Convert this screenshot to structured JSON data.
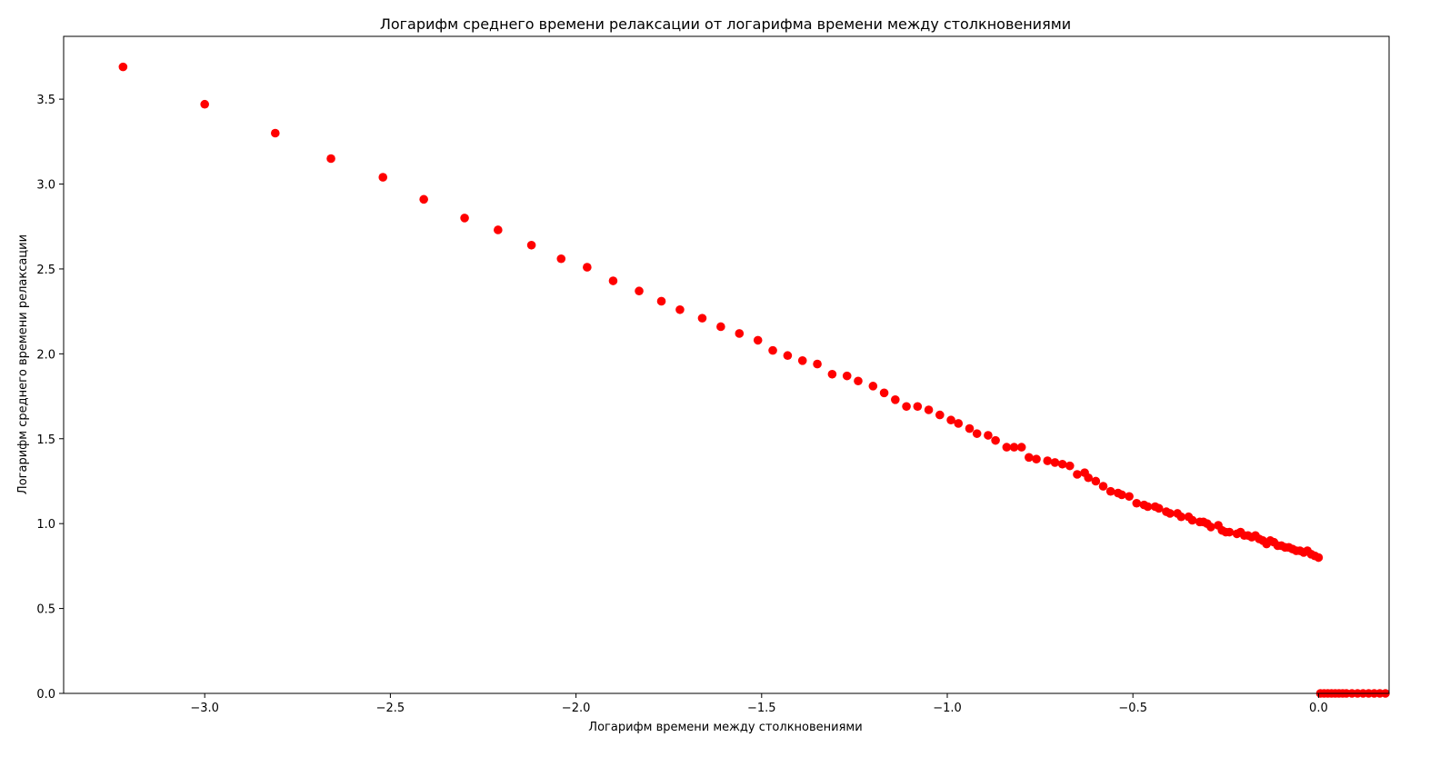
{
  "chart_data": {
    "type": "scatter",
    "title": "Логарифм среднего времени релаксации от логарифма времени между столкновениями",
    "xlabel": "Логарифм времени между столкновениями",
    "ylabel": "Логарифм среднего времени релаксации",
    "xlim": [
      -3.38,
      0.19
    ],
    "ylim": [
      0.0,
      3.87
    ],
    "x_ticks": [
      -3.0,
      -2.5,
      -2.0,
      -1.5,
      -1.0,
      -0.5,
      0.0
    ],
    "y_ticks": [
      0.0,
      0.5,
      1.0,
      1.5,
      2.0,
      2.5,
      3.0,
      3.5
    ],
    "x_tick_labels": [
      "−3.0",
      "−2.5",
      "−2.0",
      "−1.5",
      "−1.0",
      "−0.5",
      "0.0"
    ],
    "y_tick_labels": [
      "0.0",
      "0.5",
      "1.0",
      "1.5",
      "2.0",
      "2.5",
      "3.0",
      "3.5"
    ],
    "grid": false,
    "marker_color": "#ff0000",
    "series": [
      {
        "points": [
          [
            -3.22,
            3.69
          ],
          [
            -3.0,
            3.47
          ],
          [
            -2.81,
            3.3
          ],
          [
            -2.66,
            3.15
          ],
          [
            -2.52,
            3.04
          ],
          [
            -2.41,
            2.91
          ],
          [
            -2.3,
            2.8
          ],
          [
            -2.21,
            2.73
          ],
          [
            -2.12,
            2.64
          ],
          [
            -2.04,
            2.56
          ],
          [
            -1.97,
            2.51
          ],
          [
            -1.9,
            2.43
          ],
          [
            -1.83,
            2.37
          ],
          [
            -1.77,
            2.31
          ],
          [
            -1.72,
            2.26
          ],
          [
            -1.66,
            2.21
          ],
          [
            -1.61,
            2.16
          ],
          [
            -1.56,
            2.12
          ],
          [
            -1.51,
            2.08
          ],
          [
            -1.47,
            2.02
          ],
          [
            -1.43,
            1.99
          ],
          [
            -1.39,
            1.96
          ],
          [
            -1.35,
            1.94
          ],
          [
            -1.31,
            1.88
          ],
          [
            -1.27,
            1.87
          ],
          [
            -1.24,
            1.84
          ],
          [
            -1.2,
            1.81
          ],
          [
            -1.17,
            1.77
          ],
          [
            -1.14,
            1.73
          ],
          [
            -1.11,
            1.69
          ],
          [
            -1.08,
            1.69
          ],
          [
            -1.05,
            1.67
          ],
          [
            -1.02,
            1.64
          ],
          [
            -0.99,
            1.61
          ],
          [
            -0.97,
            1.59
          ],
          [
            -0.94,
            1.56
          ],
          [
            -0.92,
            1.53
          ],
          [
            -0.89,
            1.52
          ],
          [
            -0.87,
            1.49
          ],
          [
            -0.84,
            1.45
          ],
          [
            -0.82,
            1.45
          ],
          [
            -0.8,
            1.45
          ],
          [
            -0.78,
            1.39
          ],
          [
            -0.76,
            1.38
          ],
          [
            -0.73,
            1.37
          ],
          [
            -0.71,
            1.36
          ],
          [
            -0.69,
            1.35
          ],
          [
            -0.67,
            1.34
          ],
          [
            -0.65,
            1.29
          ],
          [
            -0.63,
            1.3
          ],
          [
            -0.62,
            1.27
          ],
          [
            -0.6,
            1.25
          ],
          [
            -0.58,
            1.22
          ],
          [
            -0.56,
            1.19
          ],
          [
            -0.54,
            1.18
          ],
          [
            -0.53,
            1.17
          ],
          [
            -0.51,
            1.16
          ],
          [
            -0.49,
            1.12
          ],
          [
            -0.47,
            1.11
          ],
          [
            -0.46,
            1.1
          ],
          [
            -0.44,
            1.1
          ],
          [
            -0.43,
            1.09
          ],
          [
            -0.41,
            1.07
          ],
          [
            -0.4,
            1.06
          ],
          [
            -0.38,
            1.06
          ],
          [
            -0.37,
            1.04
          ],
          [
            -0.35,
            1.04
          ],
          [
            -0.34,
            1.02
          ],
          [
            -0.32,
            1.01
          ],
          [
            -0.31,
            1.01
          ],
          [
            -0.3,
            1.0
          ],
          [
            -0.29,
            0.98
          ],
          [
            -0.27,
            0.99
          ],
          [
            -0.26,
            0.96
          ],
          [
            -0.25,
            0.95
          ],
          [
            -0.24,
            0.95
          ],
          [
            -0.22,
            0.94
          ],
          [
            -0.21,
            0.95
          ],
          [
            -0.2,
            0.93
          ],
          [
            -0.19,
            0.93
          ],
          [
            -0.18,
            0.92
          ],
          [
            -0.17,
            0.93
          ],
          [
            -0.16,
            0.91
          ],
          [
            -0.15,
            0.9
          ],
          [
            -0.14,
            0.88
          ],
          [
            -0.13,
            0.9
          ],
          [
            -0.12,
            0.89
          ],
          [
            -0.11,
            0.87
          ],
          [
            -0.1,
            0.87
          ],
          [
            -0.09,
            0.86
          ],
          [
            -0.08,
            0.86
          ],
          [
            -0.07,
            0.85
          ],
          [
            -0.06,
            0.84
          ],
          [
            -0.05,
            0.84
          ],
          [
            -0.04,
            0.83
          ],
          [
            -0.03,
            0.84
          ],
          [
            -0.02,
            0.82
          ],
          [
            -0.01,
            0.81
          ],
          [
            0.0,
            0.8
          ],
          [
            0.005,
            0.0
          ],
          [
            0.015,
            0.0
          ],
          [
            0.025,
            0.0
          ],
          [
            0.035,
            0.0
          ],
          [
            0.045,
            0.0
          ],
          [
            0.055,
            0.0
          ],
          [
            0.065,
            0.0
          ],
          [
            0.075,
            0.0
          ],
          [
            0.09,
            0.0
          ],
          [
            0.105,
            0.0
          ],
          [
            0.12,
            0.0
          ],
          [
            0.135,
            0.0
          ],
          [
            0.15,
            0.0
          ],
          [
            0.165,
            0.0
          ],
          [
            0.18,
            0.0
          ]
        ]
      }
    ]
  }
}
